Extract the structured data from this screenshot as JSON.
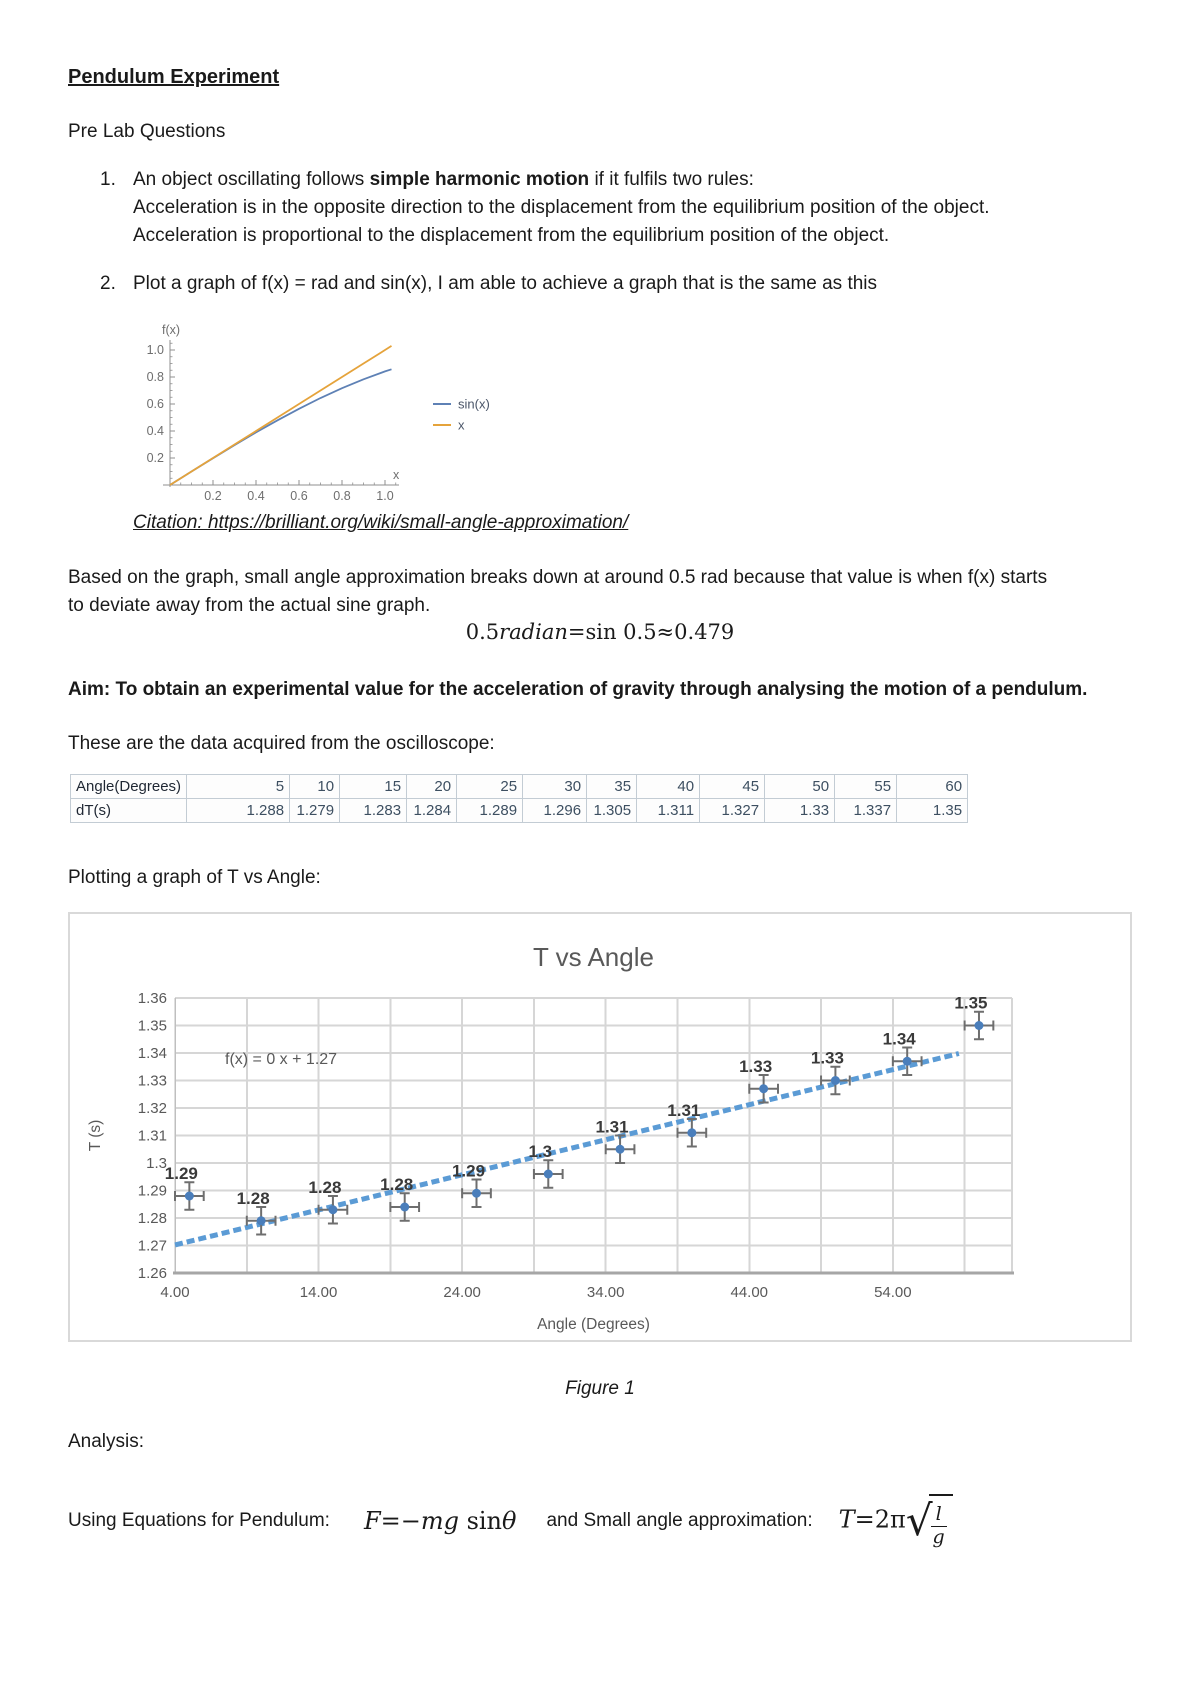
{
  "doc": {
    "title": "Pendulum Experiment",
    "prelab_heading": "Pre Lab Questions",
    "q1": {
      "number": "1.",
      "pre": "An object oscillating follows ",
      "bold": "simple harmonic motion",
      "post": " if it fulfils two rules:",
      "line2": "Acceleration is in the opposite direction to the displacement from the equilibrium position of the object.",
      "line3": "Acceleration is proportional to the displacement from the equilibrium position of the object."
    },
    "q2": {
      "number": "2.",
      "text": "Plot a graph of f(x) = rad and sin(x), I am able to achieve a graph that is the same as this"
    },
    "citation_label": "Citation: ",
    "citation_url": "https://brilliant.org/wiki/small-angle-approximation/",
    "para_line1": "Based on the graph, small angle approximation breaks down at around 0.5 rad because that value is when f(x) starts",
    "para_line2": "to deviate away from the actual sine graph.",
    "eq1": {
      "pre": "0.5",
      "mid": "radian",
      "post": "=sin 0.5≈0.479"
    },
    "aim": "Aim: To obtain an experimental value for the acceleration of gravity through analysing the motion of a pendulum.",
    "data_intro": "These are the data acquired from the oscilloscope:",
    "plotting_line": "Plotting a graph of T vs Angle:",
    "figure_caption": "Figure 1",
    "analysis_heading": "Analysis:",
    "analysis_eq": {
      "label1": "Using Equations for Pendulum:",
      "f1": "F",
      "f2": "=−",
      "f3": "mg",
      "f4": " sin",
      "f5": "θ",
      "label2": "and Small angle approximation:",
      "t1": "T",
      "t2": "=2π",
      "sqrt_num": "l",
      "sqrt_den": "g"
    }
  },
  "table": {
    "rows": [
      {
        "label": "Angle(Degrees)",
        "values": [
          "5",
          "10",
          "15",
          "20",
          "25",
          "30",
          "35",
          "40",
          "45",
          "50",
          "55",
          "60"
        ]
      },
      {
        "label": "dT(s)",
        "values": [
          "1.288",
          "1.279",
          "1.283",
          "1.284",
          "1.289",
          "1.296",
          "1.305",
          "1.311",
          "1.327",
          "1.33",
          "1.337",
          "1.35"
        ]
      }
    ]
  },
  "chart_data": [
    {
      "type": "line",
      "title": "",
      "xlabel": "x",
      "ylabel": "f(x)",
      "xlim": [
        0,
        1.05
      ],
      "ylim": [
        0,
        1.05
      ],
      "x_ticks": [
        "0.2",
        "0.4",
        "0.6",
        "0.8",
        "1.0"
      ],
      "y_ticks": [
        "0.2",
        "0.4",
        "0.6",
        "0.8",
        "1.0"
      ],
      "x": [
        0,
        0.1,
        0.2,
        0.3,
        0.4,
        0.5,
        0.6,
        0.7,
        0.8,
        0.9,
        1.0,
        1.03
      ],
      "series": [
        {
          "name": "sin(x)",
          "color": "#5e81b5",
          "values": [
            0,
            0.0998,
            0.1987,
            0.2955,
            0.3894,
            0.4794,
            0.5646,
            0.6442,
            0.7174,
            0.7833,
            0.8415,
            0.8573
          ]
        },
        {
          "name": "x",
          "color": "#e5a33b",
          "values": [
            0,
            0.1,
            0.2,
            0.3,
            0.4,
            0.5,
            0.6,
            0.7,
            0.8,
            0.9,
            1.0,
            1.03
          ]
        }
      ],
      "legend_position": "right",
      "grid": false
    },
    {
      "type": "scatter",
      "title": "T vs Angle",
      "xlabel": "Angle (Degrees)",
      "ylabel": "T (s)",
      "x": [
        5,
        10,
        15,
        20,
        25,
        30,
        35,
        40,
        45,
        50,
        55,
        60
      ],
      "y": [
        1.288,
        1.279,
        1.283,
        1.284,
        1.289,
        1.296,
        1.305,
        1.311,
        1.327,
        1.33,
        1.337,
        1.35
      ],
      "point_labels": [
        "1.29",
        "1.28",
        "1.28",
        "1.28",
        "1.29",
        "1.3",
        "1.31",
        "1.31",
        "1.33",
        "1.33",
        "1.34",
        "1.35"
      ],
      "error_y": 0.005,
      "error_x": 1,
      "trendline": {
        "label": "f(x) = 0 x + 1.27",
        "slope": 0.001275,
        "intercept": 1.2651,
        "x_start": 4,
        "x_end": 58.6
      },
      "xlim": [
        4,
        62.3
      ],
      "ylim": [
        1.26,
        1.36
      ],
      "x_tick_values": [
        4,
        14,
        24,
        34,
        44,
        54
      ],
      "x_tick_labels": [
        "4.00",
        "14.00",
        "24.00",
        "34.00",
        "44.00",
        "54.00"
      ],
      "x_grid_step": 5,
      "y_tick_values": [
        1.26,
        1.27,
        1.28,
        1.29,
        1.3,
        1.31,
        1.32,
        1.33,
        1.34,
        1.35,
        1.36
      ],
      "y_tick_labels": [
        "1.26",
        "1.27",
        "1.28",
        "1.29",
        "1.3",
        "1.31",
        "1.32",
        "1.33",
        "1.34",
        "1.35",
        "1.36"
      ],
      "grid": true,
      "legend_position": "none",
      "colors": {
        "point": "#4a7ebb",
        "trendline": "#5b9bd5",
        "error_bar": "#6e6e6e",
        "label": "#3a3a3a",
        "axis_text": "#595959",
        "grid": "#d6d6d6"
      }
    }
  ]
}
